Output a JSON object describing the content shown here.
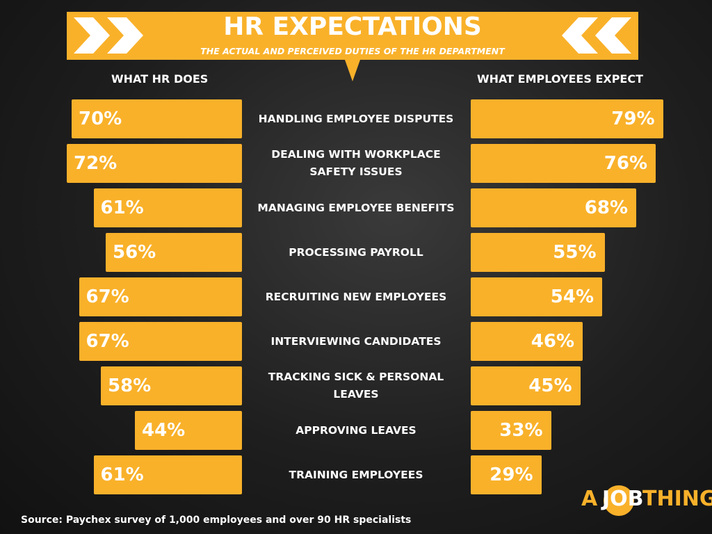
{
  "chart_data": {
    "type": "butterfly-bar",
    "title": "HR EXPECTATIONS",
    "subtitle": "THE ACTUAL AND PERCEIVED DUTIES OF THE HR DEPARTMENT",
    "categories": [
      "HANDLING EMPLOYEE DISPUTES",
      "DEALING WITH WORKPLACE SAFETY ISSUES",
      "MANAGING EMPLOYEE BENEFITS",
      "PROCESSING PAYROLL",
      "RECRUITING NEW EMPLOYEES",
      "INTERVIEWING CANDIDATES",
      "TRACKING SICK & PERSONAL LEAVES",
      "APPROVING LEAVES",
      "TRAINING EMPLOYEES"
    ],
    "series": [
      {
        "name": "WHAT HR DOES",
        "color": "#f9b12a",
        "side": "left",
        "values": [
          70,
          72,
          61,
          56,
          67,
          67,
          58,
          44,
          61
        ],
        "value_labels": [
          "70%",
          "72%",
          "61%",
          "56%",
          "67%",
          "67%",
          "58%",
          "44%",
          "61%"
        ]
      },
      {
        "name": "WHAT EMPLOYEES EXPECT",
        "color": "#f9b12a",
        "side": "right",
        "values": [
          79,
          76,
          68,
          55,
          54,
          46,
          45,
          33,
          29
        ],
        "value_labels": [
          "79%",
          "76%",
          "68%",
          "55%",
          "54%",
          "46%",
          "45%",
          "33%",
          "29%"
        ]
      }
    ],
    "source": "Source: Paychex survey of 1,000 employees and over 90 HR specialists",
    "logo": [
      "A",
      "JOB",
      "THING"
    ]
  }
}
